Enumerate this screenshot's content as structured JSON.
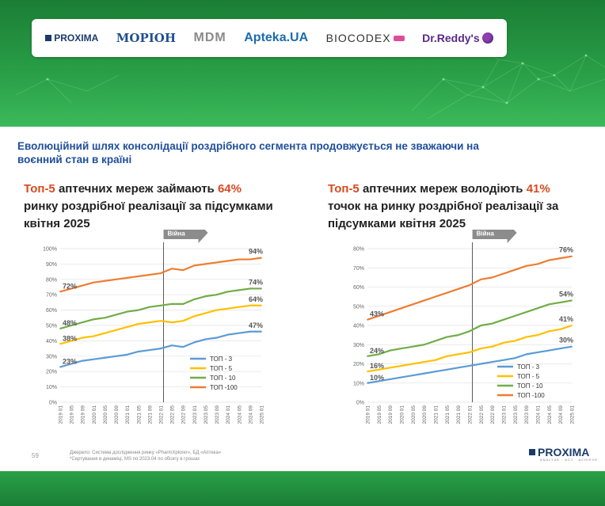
{
  "logos": [
    {
      "name": "proxima",
      "text": "PROXIMA"
    },
    {
      "name": "morion",
      "text": "MOРІОН"
    },
    {
      "name": "mdm",
      "text": "MDM"
    },
    {
      "name": "apteka",
      "text": "Apteka.UA"
    },
    {
      "name": "biocodex",
      "text": "BIOCODEX"
    },
    {
      "name": "reddys",
      "text": "Dr.Reddy's"
    }
  ],
  "slide": {
    "title": "Еволюційний шлях консолідації роздрібного сегмента продовжується не зважаючи на воєнний стан в країні",
    "left_subtitle": {
      "accent1": "Топ-5",
      "part1": " аптечних мереж займають ",
      "accent2": "64%",
      "part2": " ринку роздрібної реалізації за підсумками квітня 2025"
    },
    "right_subtitle": {
      "accent1": "Топ-5",
      "part1": " аптечних мереж володіють ",
      "accent2": "41%",
      "part2": " точок на ринку роздрібної реалізації за підсумками квітня 2025"
    },
    "page_number": "59",
    "footnote_line1": "Джерело: Система дослідження ринку «PharmXplorer», БД «Аптека»",
    "footnote_line2": "*Сертування в динаміці, MS по 2023.04 по обсягу в грошах",
    "footer_logo": "PROXIMA",
    "footer_tagline": "ANALYZE · ACT · ACHIEVE"
  },
  "chart_data": [
    {
      "type": "line",
      "annotation": "Війна",
      "annotation_x": "2022 02",
      "ylim": [
        0,
        100
      ],
      "yticks": [
        "0%",
        "10%",
        "20%",
        "30%",
        "40%",
        "50%",
        "60%",
        "70%",
        "80%",
        "90%",
        "100%"
      ],
      "x": [
        "2019 01",
        "2019 05",
        "2019 09",
        "2020 01",
        "2020 05",
        "2020 09",
        "2021 01",
        "2021 05",
        "2021 09",
        "2022 01",
        "2022 05",
        "2022 09",
        "2023 01",
        "2023 05",
        "2023 09",
        "2024 01",
        "2024 05",
        "2024 09",
        "2025 01"
      ],
      "series": [
        {
          "name": "ТОП - 3",
          "color": "#5b9bd5",
          "start_label": "23%",
          "end_label": "47%",
          "values": [
            23,
            25,
            27,
            28,
            29,
            30,
            31,
            33,
            34,
            35,
            37,
            36,
            39,
            41,
            42,
            44,
            45,
            46,
            46
          ]
        },
        {
          "name": "ТОП - 5",
          "color": "#ffc000",
          "start_label": "38%",
          "end_label": "64%",
          "values": [
            38,
            40,
            42,
            43,
            45,
            47,
            49,
            51,
            52,
            53,
            52,
            53,
            56,
            58,
            60,
            61,
            62,
            63,
            63
          ]
        },
        {
          "name": "ТОП - 10",
          "color": "#70ad47",
          "start_label": "48%",
          "end_label": "74%",
          "values": [
            48,
            50,
            52,
            54,
            55,
            57,
            59,
            60,
            62,
            63,
            64,
            64,
            67,
            69,
            70,
            72,
            73,
            74,
            74
          ]
        },
        {
          "name": "ТОП -100",
          "color": "#ed7d31",
          "start_label": "72%",
          "end_label": "94%",
          "values": [
            72,
            74,
            76,
            78,
            79,
            80,
            81,
            82,
            83,
            84,
            87,
            86,
            89,
            90,
            91,
            92,
            93,
            93,
            94
          ]
        }
      ]
    },
    {
      "type": "line",
      "annotation": "Війна",
      "annotation_x": "2022 02",
      "ylim": [
        0,
        80
      ],
      "yticks": [
        "0%",
        "10%",
        "20%",
        "30%",
        "40%",
        "50%",
        "60%",
        "70%",
        "80%"
      ],
      "x": [
        "2019 01",
        "2019 05",
        "2019 09",
        "2020 01",
        "2020 05",
        "2020 09",
        "2021 01",
        "2021 05",
        "2021 09",
        "2022 01",
        "2022 05",
        "2022 09",
        "2023 01",
        "2023 05",
        "2023 09",
        "2024 01",
        "2024 05",
        "2024 09",
        "2025 01"
      ],
      "series": [
        {
          "name": "ТОП - 3",
          "color": "#5b9bd5",
          "start_label": "10%",
          "end_label": "30%",
          "values": [
            10,
            11,
            12,
            13,
            14,
            15,
            16,
            17,
            18,
            19,
            20,
            21,
            22,
            23,
            25,
            26,
            27,
            28,
            29
          ]
        },
        {
          "name": "ТОП - 5",
          "color": "#ffc000",
          "start_label": "16%",
          "end_label": "41%",
          "values": [
            16,
            17,
            18,
            19,
            20,
            21,
            22,
            24,
            25,
            26,
            28,
            29,
            31,
            32,
            34,
            35,
            37,
            38,
            40
          ]
        },
        {
          "name": "ТОП - 10",
          "color": "#70ad47",
          "start_label": "24%",
          "end_label": "54%",
          "values": [
            24,
            25,
            27,
            28,
            29,
            30,
            32,
            34,
            35,
            37,
            40,
            41,
            43,
            45,
            47,
            49,
            51,
            52,
            53
          ]
        },
        {
          "name": "ТОП -100",
          "color": "#ed7d31",
          "start_label": "43%",
          "end_label": "76%",
          "values": [
            43,
            45,
            47,
            49,
            51,
            53,
            55,
            57,
            59,
            61,
            64,
            65,
            67,
            69,
            71,
            72,
            74,
            75,
            76
          ]
        }
      ]
    }
  ]
}
